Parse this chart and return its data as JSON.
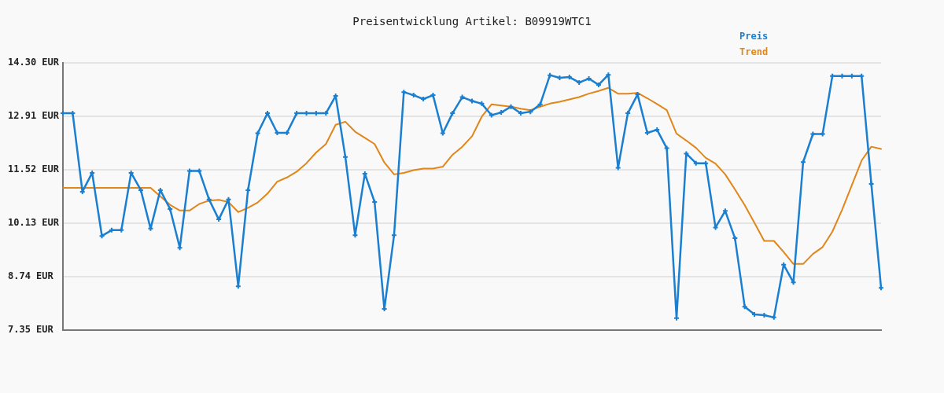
{
  "chart_data": {
    "type": "line",
    "title": "Preisentwicklung Artikel: B09919WTC1",
    "categories": [
      null,
      null,
      null,
      null,
      null,
      null,
      null,
      null,
      null,
      null,
      null,
      null,
      null,
      null,
      null,
      null,
      null,
      null,
      null,
      null,
      null,
      null,
      null,
      null,
      null,
      null,
      null,
      null,
      null,
      null,
      null,
      null,
      null,
      null,
      null,
      null,
      null,
      null,
      null,
      null,
      null,
      null,
      null,
      null,
      null,
      null,
      null,
      null,
      null,
      null,
      null,
      null,
      null,
      null,
      null,
      null,
      null,
      null,
      null,
      null,
      null,
      null,
      null,
      null,
      null,
      null,
      null,
      null,
      null,
      null,
      null,
      null,
      null,
      null,
      null,
      null,
      null,
      null,
      null,
      null,
      null,
      null,
      null,
      null,
      null
    ],
    "series": [
      {
        "name": "Preis",
        "color": "#1a7fd0",
        "marker": "cross",
        "values": [
          12.99,
          12.99,
          10.95,
          11.44,
          9.8,
          9.95,
          9.95,
          11.44,
          10.99,
          9.99,
          10.99,
          10.5,
          9.49,
          11.49,
          11.49,
          10.75,
          10.23,
          10.75,
          8.49,
          10.99,
          12.47,
          12.99,
          12.48,
          12.48,
          12.99,
          12.99,
          12.99,
          12.99,
          13.44,
          11.85,
          9.82,
          11.42,
          10.68,
          7.9,
          9.82,
          13.54,
          13.46,
          13.36,
          13.46,
          12.47,
          12.99,
          13.41,
          13.31,
          13.24,
          12.94,
          13.01,
          13.16,
          12.99,
          13.03,
          13.22,
          13.98,
          13.91,
          13.93,
          13.79,
          13.89,
          13.73,
          13.99,
          11.57,
          12.99,
          13.48,
          12.48,
          12.56,
          12.08,
          7.66,
          11.94,
          11.69,
          11.69,
          10.02,
          10.45,
          9.74,
          7.96,
          7.76,
          7.74,
          7.68,
          9.05,
          8.59,
          11.72,
          12.45,
          12.45,
          13.96,
          13.96,
          13.96,
          13.96,
          11.15,
          8.45
        ]
      },
      {
        "name": "Trend",
        "color": "#e0861a",
        "marker": "none",
        "values": [
          11.05,
          11.05,
          11.05,
          11.05,
          11.05,
          11.05,
          11.05,
          11.05,
          11.05,
          11.05,
          10.83,
          10.61,
          10.46,
          10.46,
          10.63,
          10.72,
          10.74,
          10.68,
          10.42,
          10.53,
          10.67,
          10.9,
          11.21,
          11.32,
          11.47,
          11.69,
          11.97,
          12.19,
          12.69,
          12.77,
          12.51,
          12.35,
          12.19,
          11.71,
          11.4,
          11.44,
          11.51,
          11.55,
          11.55,
          11.6,
          11.91,
          12.12,
          12.39,
          12.9,
          13.22,
          13.19,
          13.16,
          13.11,
          13.07,
          13.16,
          13.24,
          13.29,
          13.35,
          13.41,
          13.5,
          13.57,
          13.65,
          13.5,
          13.5,
          13.52,
          13.38,
          13.23,
          13.07,
          12.46,
          12.28,
          12.09,
          11.83,
          11.68,
          11.4,
          11.01,
          10.6,
          10.14,
          9.67,
          9.67,
          9.38,
          9.07,
          9.07,
          9.33,
          9.51,
          9.91,
          10.48,
          11.12,
          11.76,
          12.12,
          12.06
        ]
      }
    ],
    "ylim": [
      7.35,
      14.3
    ],
    "yticks": [
      {
        "value": 7.35,
        "label": "7.35 EUR"
      },
      {
        "value": 8.74,
        "label": "8.74 EUR"
      },
      {
        "value": 10.13,
        "label": "10.13 EUR"
      },
      {
        "value": 11.52,
        "label": "11.52 EUR"
      },
      {
        "value": 12.91,
        "label": "12.91 EUR"
      },
      {
        "value": 14.3,
        "label": "14.30 EUR"
      }
    ],
    "grid": "y",
    "legend": "top right",
    "tick_labels": "y",
    "line_style": "solid"
  }
}
